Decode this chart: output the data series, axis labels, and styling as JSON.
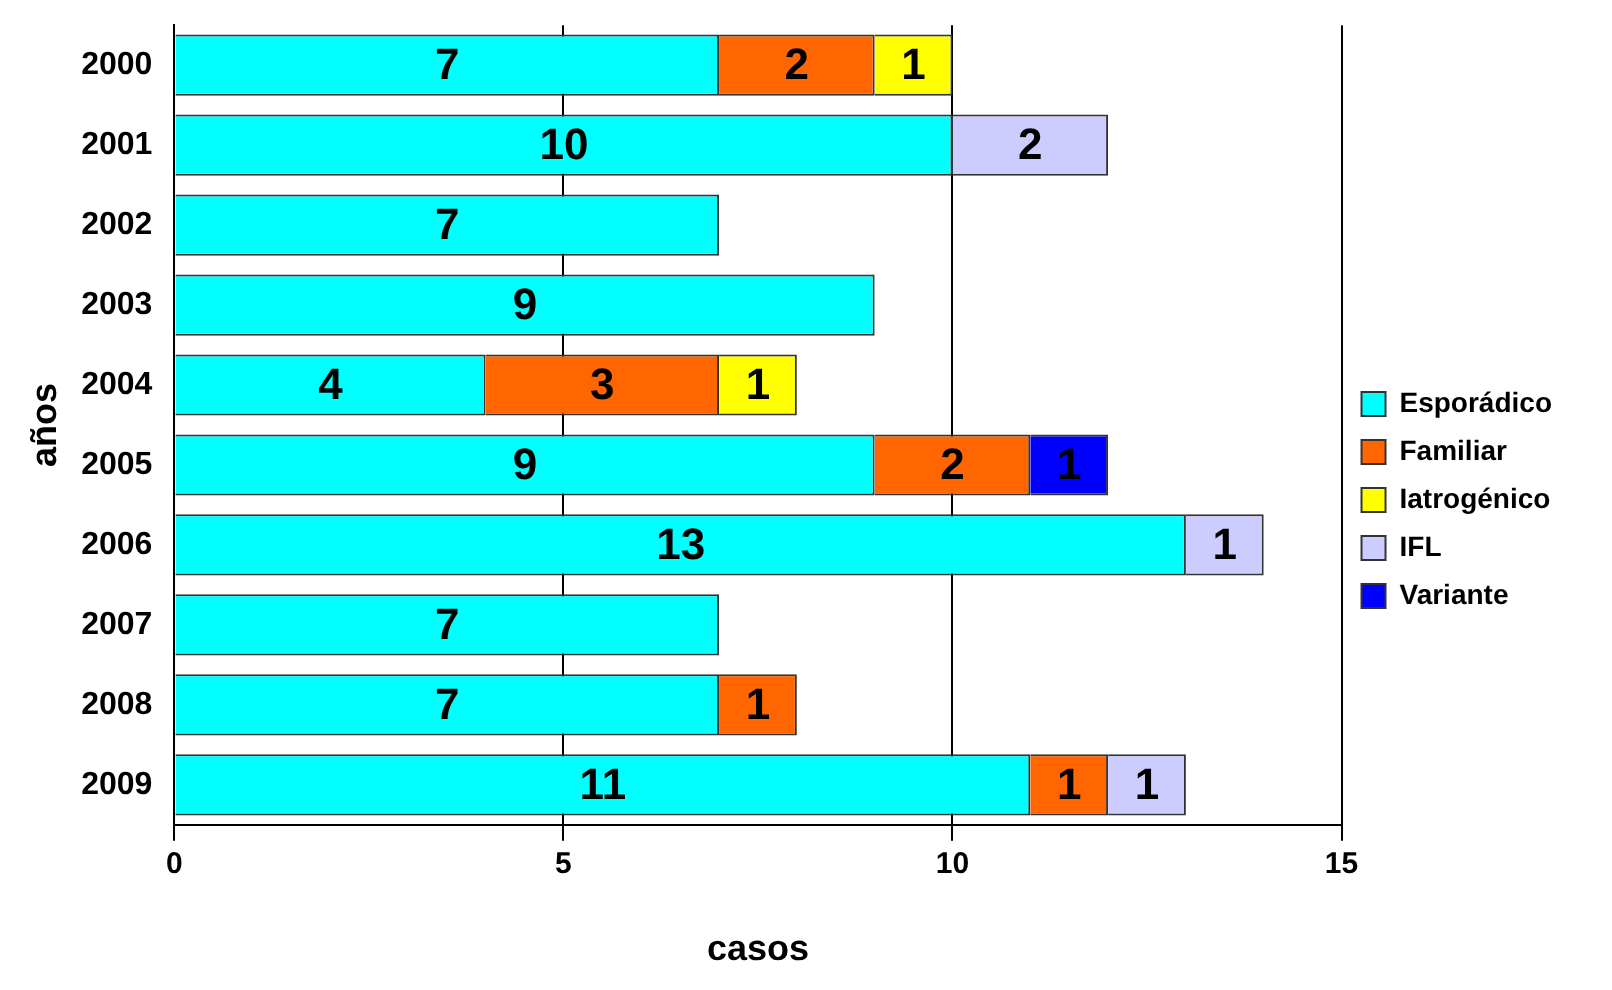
{
  "chart_data": {
    "type": "bar",
    "orientation": "horizontal",
    "stacked": true,
    "xlabel": "casos",
    "ylabel": "años",
    "categories": [
      "2000",
      "2001",
      "2002",
      "2003",
      "2004",
      "2005",
      "2006",
      "2007",
      "2008",
      "2009"
    ],
    "series": [
      {
        "name": "Esporádico",
        "color": "#00ffff",
        "values": [
          7,
          10,
          7,
          9,
          4,
          9,
          13,
          7,
          7,
          11
        ]
      },
      {
        "name": "Familiar",
        "color": "#ff6600",
        "values": [
          2,
          null,
          null,
          null,
          3,
          2,
          null,
          null,
          1,
          1
        ]
      },
      {
        "name": "Iatrogénico",
        "color": "#ffff00",
        "values": [
          1,
          null,
          null,
          null,
          1,
          null,
          null,
          null,
          null,
          null
        ]
      },
      {
        "name": "IFL",
        "color": "#ccccff",
        "values": [
          null,
          2,
          null,
          null,
          null,
          null,
          1,
          null,
          null,
          1
        ]
      },
      {
        "name": "Variante",
        "color": "#0000ff",
        "values": [
          null,
          null,
          null,
          null,
          null,
          1,
          null,
          null,
          null,
          null
        ]
      }
    ],
    "xlim": [
      0,
      15
    ],
    "xticks": [
      0,
      5,
      10,
      15
    ],
    "grid": "x",
    "legend": "right",
    "data_labels": true
  }
}
